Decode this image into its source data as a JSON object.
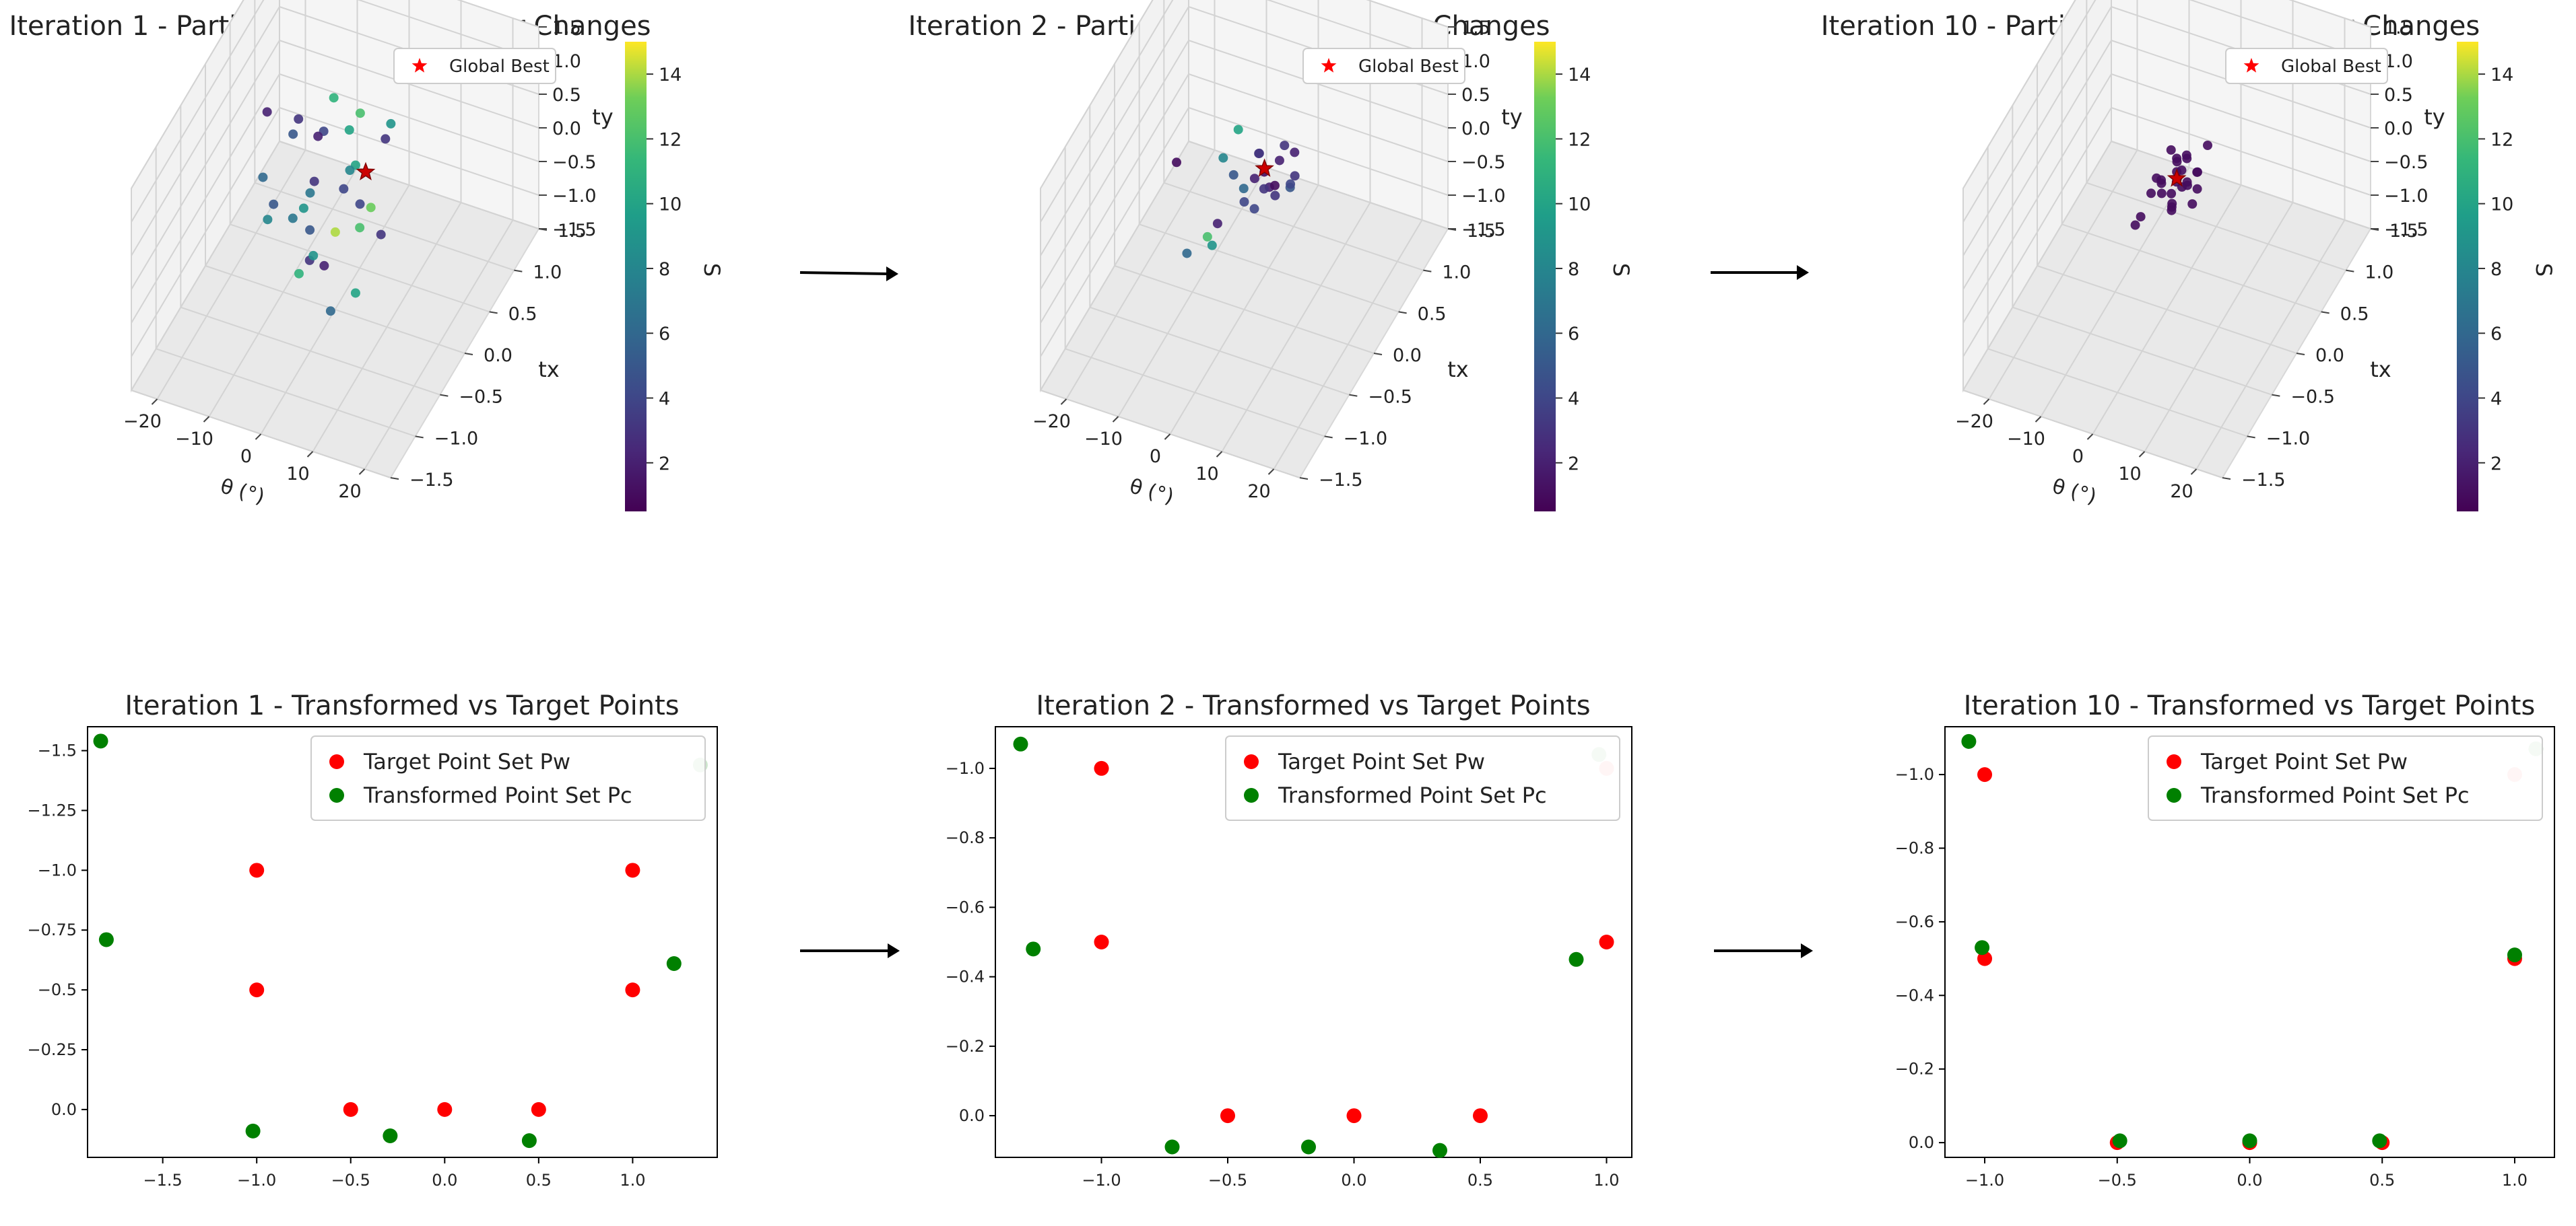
{
  "chart_data": [
    {
      "type": "scatter3d",
      "title": "Iteration 1 - Particle Swarm Parameter Changes",
      "xlabel": "θ (°)",
      "ylabel": "tx",
      "zlabel": "ty",
      "xlim": [
        -25,
        25
      ],
      "ylim": [
        -1.5,
        1.5
      ],
      "zlim": [
        -1.5,
        1.5
      ],
      "xticks": [
        "−20",
        "−10",
        "0",
        "10",
        "20"
      ],
      "yticks": [
        "−1.5",
        "−1.0",
        "−0.5",
        "0.0",
        "0.5",
        "1.0",
        "1.5"
      ],
      "zticks": [
        "−1.5",
        "−1.0",
        "−0.5",
        "0.0",
        "0.5",
        "1.0",
        "1.5"
      ],
      "legend": "Global Best",
      "colorbar_label": "S",
      "colorbar_ticks": [
        "2",
        "4",
        "6",
        "8",
        "10",
        "12",
        "14"
      ],
      "colorbar_range": [
        0.5,
        15
      ],
      "global_best": [
        4,
        0.2,
        0.4
      ],
      "particles": [
        [
          -15,
          0.2,
          0.8,
          2
        ],
        [
          -8,
          0.1,
          1.0,
          3
        ],
        [
          -5,
          0.5,
          0.9,
          11
        ],
        [
          2,
          0.3,
          1.1,
          12
        ],
        [
          6,
          0.5,
          0.8,
          9
        ],
        [
          -10,
          0.2,
          0.6,
          5
        ],
        [
          -6,
          0.4,
          0.5,
          4
        ],
        [
          3,
          0.1,
          0.6,
          10
        ],
        [
          -12,
          -0.2,
          0.4,
          6
        ],
        [
          -4,
          0.0,
          0.3,
          3
        ],
        [
          0,
          0.3,
          0.2,
          8
        ],
        [
          -9,
          0.6,
          0.1,
          2
        ],
        [
          -2,
          -0.3,
          0.0,
          5
        ],
        [
          5,
          0.2,
          -0.1,
          13
        ],
        [
          -7,
          0.1,
          -0.3,
          9
        ],
        [
          1,
          0.4,
          -0.4,
          4
        ],
        [
          -3,
          -0.2,
          -0.6,
          3
        ],
        [
          -11,
          0.3,
          -0.8,
          7
        ],
        [
          -6,
          -0.1,
          -1.0,
          11
        ],
        [
          0,
          0.5,
          -0.9,
          12
        ],
        [
          -4,
          0.2,
          -1.2,
          2
        ],
        [
          2,
          -0.3,
          -1.1,
          6
        ],
        [
          -8,
          0.4,
          -1.4,
          9
        ],
        [
          3,
          0.1,
          -1.3,
          10
        ],
        [
          -1,
          -0.4,
          0.7,
          7
        ],
        [
          4,
          0.6,
          0.4,
          3
        ],
        [
          -13,
          0.0,
          -0.5,
          8
        ],
        [
          -5,
          0.7,
          -0.7,
          4
        ],
        [
          1,
          -0.1,
          -0.2,
          14
        ],
        [
          -9,
          -0.3,
          0.2,
          5
        ],
        [
          6,
          0.3,
          -0.6,
          3
        ],
        [
          -2,
          0.5,
          0.5,
          10
        ]
      ]
    },
    {
      "type": "scatter3d",
      "title": "Iteration 2 - Particle Swarm Parameter Changes",
      "xlabel": "θ (°)",
      "ylabel": "tx",
      "zlabel": "ty",
      "xlim": [
        -25,
        25
      ],
      "ylim": [
        -1.5,
        1.5
      ],
      "zlim": [
        -1.5,
        1.5
      ],
      "xticks": [
        "−20",
        "−10",
        "0",
        "10",
        "20"
      ],
      "yticks": [
        "−1.5",
        "−1.0",
        "−0.5",
        "0.0",
        "0.5",
        "1.0",
        "1.5"
      ],
      "zticks": [
        "−1.5",
        "−1.0",
        "−0.5",
        "0.0",
        "0.5",
        "1.0",
        "1.5"
      ],
      "legend": "Global Best",
      "colorbar_label": "S",
      "colorbar_ticks": [
        "2",
        "4",
        "6",
        "8",
        "10",
        "12",
        "14"
      ],
      "colorbar_range": [
        0.5,
        15
      ],
      "global_best": [
        2,
        0.2,
        0.4
      ],
      "particles": [
        [
          -14,
          0.1,
          0.2,
          1
        ],
        [
          -4,
          0.3,
          0.7,
          10
        ],
        [
          1,
          0.2,
          0.6,
          3
        ],
        [
          3,
          0.4,
          0.3,
          2
        ],
        [
          5,
          0.1,
          0.2,
          3
        ],
        [
          0,
          0.0,
          0.1,
          4
        ],
        [
          2,
          0.3,
          0.0,
          2
        ],
        [
          4,
          0.2,
          0.2,
          1
        ],
        [
          -1,
          0.4,
          0.3,
          3
        ],
        [
          6,
          0.3,
          0.1,
          5
        ],
        [
          1,
          0.1,
          -0.1,
          4
        ],
        [
          3,
          0.5,
          0.4,
          3
        ],
        [
          -2,
          0.2,
          0.0,
          6
        ],
        [
          2,
          0.0,
          0.5,
          2
        ],
        [
          7,
          0.2,
          0.3,
          4
        ],
        [
          0,
          0.4,
          -0.2,
          3
        ],
        [
          4,
          0.6,
          0.2,
          2
        ],
        [
          -3,
          0.1,
          0.3,
          5
        ],
        [
          5,
          0.5,
          0.0,
          3
        ],
        [
          1,
          0.3,
          0.2,
          1
        ],
        [
          -5,
          0.1,
          0.5,
          8
        ],
        [
          -9,
          0.2,
          -0.9,
          12
        ],
        [
          -12,
          0.1,
          -1.1,
          6
        ],
        [
          -10,
          0.4,
          -1.3,
          9
        ],
        [
          -8,
          0.3,
          -0.8,
          2
        ]
      ]
    },
    {
      "type": "scatter3d",
      "title": "Iteration 10 - Particle Swarm Parameter Changes",
      "xlabel": "θ (°)",
      "ylabel": "tx",
      "zlabel": "ty",
      "xlim": [
        -25,
        25
      ],
      "ylim": [
        -1.5,
        1.5
      ],
      "zlim": [
        -1.5,
        1.5
      ],
      "xticks": [
        "−20",
        "−10",
        "0",
        "10",
        "20"
      ],
      "yticks": [
        "−1.5",
        "−1.0",
        "−0.5",
        "0.0",
        "0.5",
        "1.0",
        "1.5"
      ],
      "zticks": [
        "−1.5",
        "−1.0",
        "−0.5",
        "0.0",
        "0.5",
        "1.0",
        "1.5"
      ],
      "legend": "Global Best",
      "colorbar_label": "S",
      "colorbar_ticks": [
        "2",
        "4",
        "6",
        "8",
        "10",
        "12",
        "14"
      ],
      "colorbar_range": [
        0.5,
        15
      ],
      "global_best": [
        0,
        0.2,
        0.2
      ],
      "particles": [
        [
          -2,
          0.1,
          0.2,
          1
        ],
        [
          0,
          0.2,
          0.3,
          1
        ],
        [
          1,
          0.0,
          0.1,
          1
        ],
        [
          -1,
          0.3,
          0.0,
          1
        ],
        [
          2,
          0.2,
          0.2,
          1
        ],
        [
          0,
          0.1,
          -0.1,
          1
        ],
        [
          -3,
          0.2,
          0.1,
          1
        ],
        [
          1,
          0.3,
          0.4,
          1
        ],
        [
          3,
          0.1,
          0.3,
          1
        ],
        [
          -1,
          0.0,
          0.2,
          1
        ],
        [
          2,
          0.4,
          0.1,
          1
        ],
        [
          0,
          0.2,
          0.5,
          1
        ],
        [
          -2,
          0.3,
          -0.2,
          1
        ],
        [
          4,
          0.2,
          0.4,
          1
        ],
        [
          1,
          0.1,
          0.6,
          1
        ],
        [
          -4,
          0.1,
          0.0,
          1
        ],
        [
          3,
          0.3,
          0.0,
          1
        ],
        [
          0,
          0.4,
          0.3,
          1
        ],
        [
          -1,
          0.2,
          -0.3,
          1
        ],
        [
          2,
          0.0,
          0.5,
          1
        ],
        [
          -6,
          0.1,
          -0.4,
          1
        ],
        [
          -8,
          0.2,
          -0.7,
          1
        ],
        [
          5,
          0.3,
          0.7,
          1
        ],
        [
          1,
          0.2,
          0.1,
          1
        ],
        [
          -2,
          0.0,
          0.4,
          1
        ],
        [
          3,
          0.2,
          -0.1,
          1
        ],
        [
          0,
          0.3,
          0.2,
          1
        ],
        [
          -3,
          0.4,
          0.3,
          1
        ]
      ]
    },
    {
      "type": "scatter",
      "title": "Iteration 1 - Transformed vs Target Points",
      "xlim": [
        -1.9,
        1.45
      ],
      "ylim": [
        -1.6,
        0.2
      ],
      "y_inverted": true,
      "xticks": [
        -1.5,
        -1.0,
        -0.5,
        0.0,
        0.5,
        1.0
      ],
      "yticks": [
        -1.5,
        -1.25,
        -1.0,
        -0.75,
        -0.5,
        -0.25,
        0.0
      ],
      "legend": [
        "Target Point Set Pw",
        "Transformed Point Set Pc"
      ],
      "series": [
        {
          "name": "Target Point Set Pw",
          "color": "#ff0000",
          "points": [
            [
              -1.0,
              -1.0
            ],
            [
              -1.0,
              -0.5
            ],
            [
              -0.5,
              0.0
            ],
            [
              0.0,
              0.0
            ],
            [
              0.5,
              0.0
            ],
            [
              1.0,
              -1.0
            ],
            [
              1.0,
              -0.5
            ]
          ]
        },
        {
          "name": "Transformed Point Set Pc",
          "color": "#008000",
          "points": [
            [
              -1.83,
              -1.54
            ],
            [
              -1.8,
              -0.71
            ],
            [
              -1.02,
              0.09
            ],
            [
              -0.29,
              0.11
            ],
            [
              0.45,
              0.13
            ],
            [
              1.22,
              -0.61
            ],
            [
              1.36,
              -1.44
            ]
          ]
        }
      ]
    },
    {
      "type": "scatter",
      "title": "Iteration 2 - Transformed vs Target Points",
      "xlim": [
        -1.42,
        1.1
      ],
      "ylim": [
        -1.12,
        0.12
      ],
      "y_inverted": true,
      "xticks": [
        -1.0,
        -0.5,
        0.0,
        0.5,
        1.0
      ],
      "yticks": [
        -1.0,
        -0.8,
        -0.6,
        -0.4,
        -0.2,
        0.0
      ],
      "legend": [
        "Target Point Set Pw",
        "Transformed Point Set Pc"
      ],
      "series": [
        {
          "name": "Target Point Set Pw",
          "color": "#ff0000",
          "points": [
            [
              -1.0,
              -1.0
            ],
            [
              -1.0,
              -0.5
            ],
            [
              -0.5,
              0.0
            ],
            [
              0.0,
              0.0
            ],
            [
              0.5,
              0.0
            ],
            [
              1.0,
              -1.0
            ],
            [
              1.0,
              -0.5
            ]
          ]
        },
        {
          "name": "Transformed Point Set Pc",
          "color": "#008000",
          "points": [
            [
              -1.32,
              -1.07
            ],
            [
              -1.27,
              -0.48
            ],
            [
              -0.72,
              0.09
            ],
            [
              -0.18,
              0.09
            ],
            [
              0.34,
              0.1
            ],
            [
              0.88,
              -0.45
            ],
            [
              0.97,
              -1.04
            ]
          ]
        }
      ]
    },
    {
      "type": "scatter",
      "title": "Iteration 10 - Transformed vs Target Points",
      "xlim": [
        -1.15,
        1.15
      ],
      "ylim": [
        -1.13,
        0.04
      ],
      "y_inverted": true,
      "xticks": [
        -1.0,
        -0.5,
        0.0,
        0.5,
        1.0
      ],
      "yticks": [
        -1.0,
        -0.8,
        -0.6,
        -0.4,
        -0.2,
        0.0
      ],
      "legend": [
        "Target Point Set Pw",
        "Transformed Point Set Pc"
      ],
      "series": [
        {
          "name": "Target Point Set Pw",
          "color": "#ff0000",
          "points": [
            [
              -1.0,
              -1.0
            ],
            [
              -1.0,
              -0.5
            ],
            [
              -0.5,
              0.0
            ],
            [
              0.0,
              0.0
            ],
            [
              0.5,
              0.0
            ],
            [
              1.0,
              -1.0
            ],
            [
              1.0,
              -0.5
            ]
          ]
        },
        {
          "name": "Transformed Point Set Pc",
          "color": "#008000",
          "points": [
            [
              -1.06,
              -1.09
            ],
            [
              -1.01,
              -0.53
            ],
            [
              -0.49,
              -0.005
            ],
            [
              0.0,
              -0.005
            ],
            [
              0.49,
              -0.005
            ],
            [
              1.08,
              -1.07
            ],
            [
              1.0,
              -0.51
            ]
          ]
        }
      ]
    }
  ]
}
